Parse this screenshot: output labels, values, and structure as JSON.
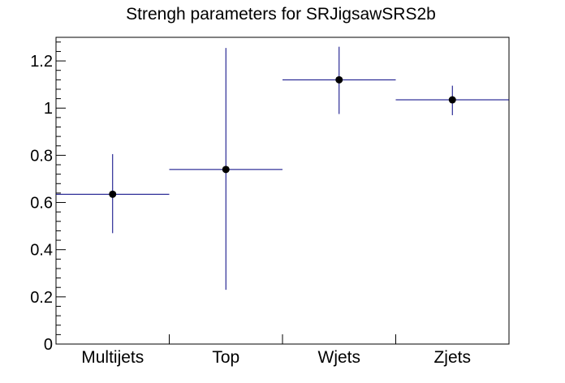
{
  "chart_data": {
    "type": "scatter",
    "title": "Strengh parameters for SRJigsawSRS2b",
    "categories": [
      "Multijets",
      "Top",
      "Wjets",
      "Zjets"
    ],
    "series": [
      {
        "values": [
          0.635,
          0.74,
          1.12,
          1.035
        ],
        "y_err_low": [
          0.165,
          0.51,
          0.145,
          0.065
        ],
        "y_err_high": [
          0.17,
          0.515,
          0.14,
          0.06
        ]
      }
    ],
    "ylim": [
      0,
      1.3
    ],
    "yticks": [
      {
        "value": 0,
        "label": "0"
      },
      {
        "value": 0.2,
        "label": "0.2"
      },
      {
        "value": 0.4,
        "label": "0.4"
      },
      {
        "value": 0.6,
        "label": "0.6"
      },
      {
        "value": 0.8,
        "label": "0.8"
      },
      {
        "value": 1.0,
        "label": "1"
      },
      {
        "value": 1.2,
        "label": "1.2"
      }
    ],
    "xlabel": "",
    "ylabel": "",
    "grid": false,
    "colors": {
      "marker": "#000000",
      "bin_line": "#000080",
      "error_bar": "#000080",
      "frame": "#000000"
    }
  }
}
